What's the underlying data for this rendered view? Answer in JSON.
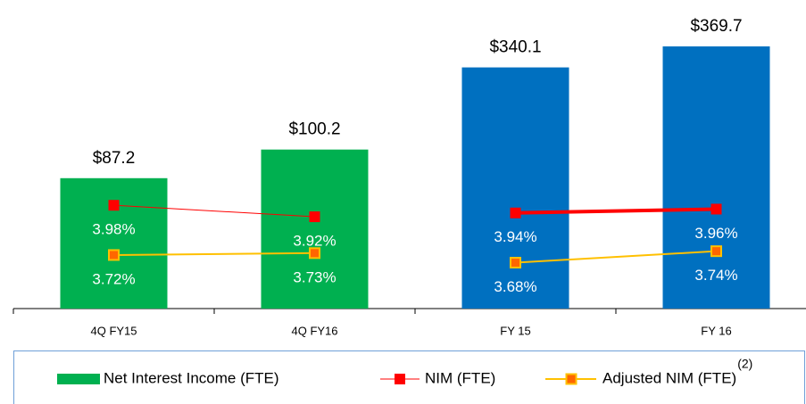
{
  "legend_note": "(2)",
  "chart_data": [
    {
      "type": "bar",
      "categories": [
        "4Q FY15",
        "4Q FY16"
      ],
      "ylim": [
        28,
        160
      ],
      "y2lim": [
        3.44,
        4.96
      ],
      "series": [
        {
          "name": "Net Interest Income (FTE)",
          "color": "#00b050",
          "values": [
            87.2,
            100.2
          ],
          "value_labels": [
            "$87.2",
            "$100.2"
          ]
        },
        {
          "name": "NIM (FTE)",
          "type": "line",
          "axis": "y2",
          "color": "#ff0000",
          "line_width": 1,
          "values": [
            3.98,
            3.92
          ],
          "value_labels": [
            "3.98%",
            "3.92%"
          ]
        },
        {
          "name": "Adjusted NIM (FTE)",
          "type": "line",
          "axis": "y2",
          "color": "#ffc000",
          "line_width": 2,
          "values": [
            3.72,
            3.73
          ],
          "value_labels": [
            "3.72%",
            "3.73%"
          ]
        }
      ]
    },
    {
      "type": "bar",
      "categories": [
        "FY 15",
        "FY 16"
      ],
      "ylim": [
        0,
        410
      ],
      "y2lim": [
        3.44,
        4.96
      ],
      "series": [
        {
          "color": "#0070c0",
          "values": [
            340.1,
            369.7
          ],
          "value_labels": [
            "$340.1",
            "$369.7"
          ]
        },
        {
          "type": "line",
          "axis": "y2",
          "color": "#ff0000",
          "line_width": 4,
          "values": [
            3.94,
            3.96
          ],
          "value_labels": [
            "3.94%",
            "3.96%"
          ]
        },
        {
          "type": "line",
          "axis": "y2",
          "color": "#ffc000",
          "line_width": 2,
          "values": [
            3.68,
            3.74
          ],
          "value_labels": [
            "3.68%",
            "3.74%"
          ]
        }
      ]
    }
  ]
}
